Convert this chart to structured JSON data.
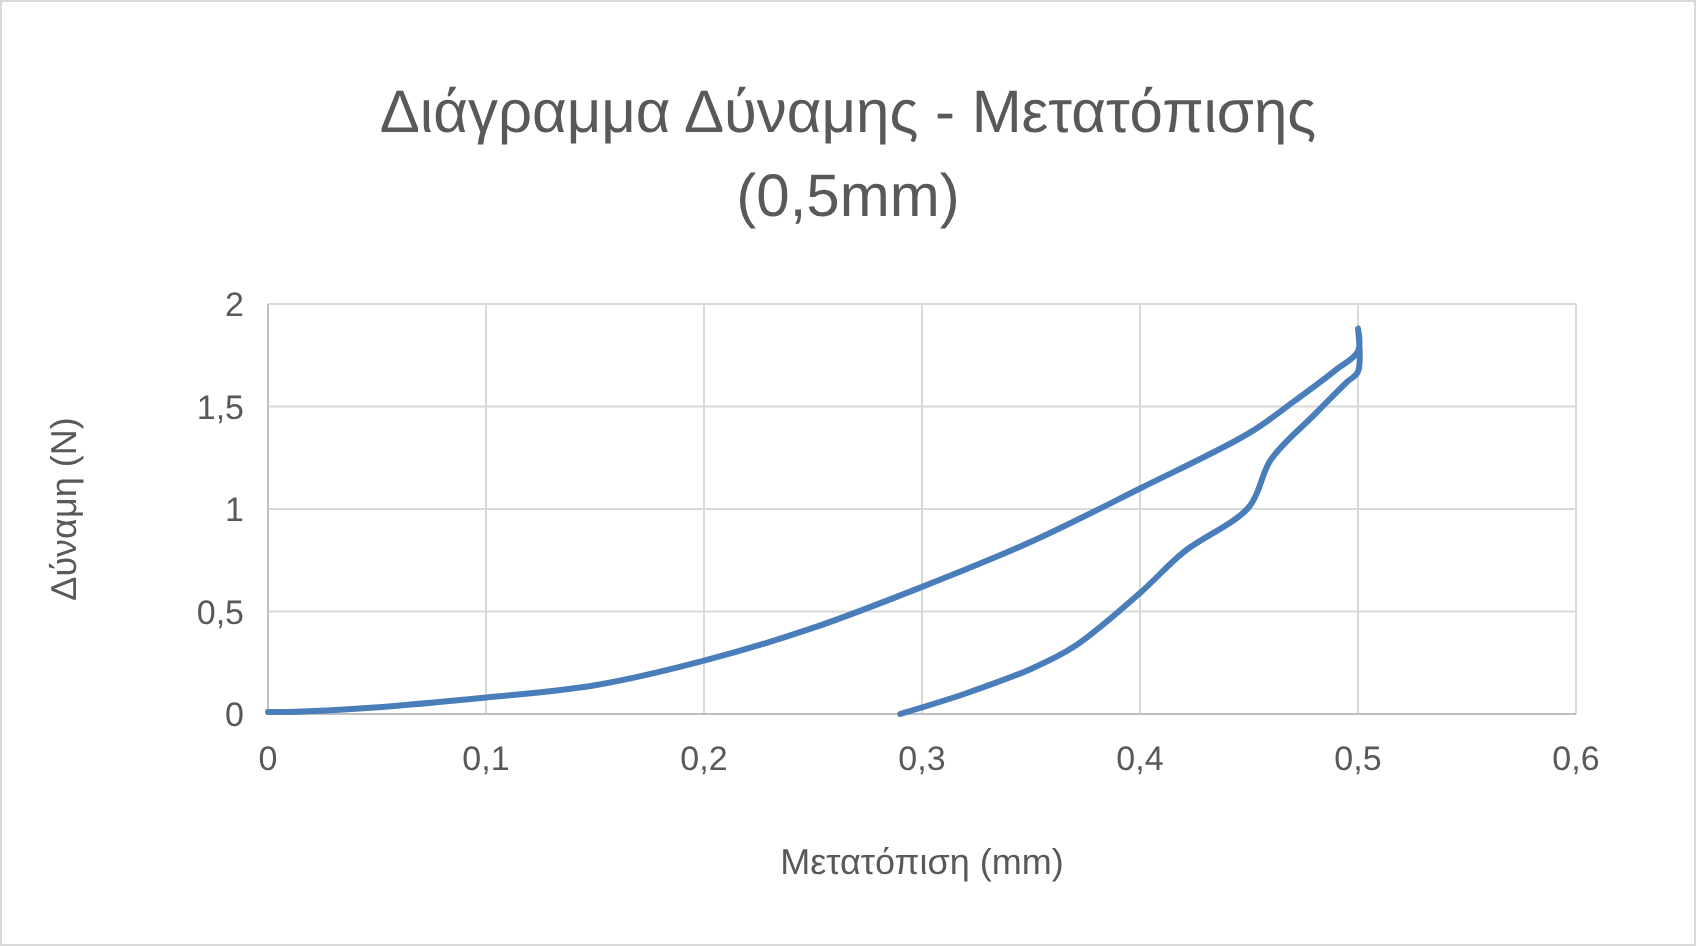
{
  "chart_data": {
    "type": "line",
    "title": "Διάγραμμα Δύναμης - Μετατόπισης (0,5mm)",
    "xlabel": "Μετατόπιση (mm)",
    "ylabel": "Δύναμη (N)",
    "xlim": [
      0,
      0.6
    ],
    "xticks": [
      {
        "value": 0,
        "label": "0"
      },
      {
        "value": 0.1,
        "label": "0,1"
      },
      {
        "value": 0.2,
        "label": "0,2"
      },
      {
        "value": 0.3,
        "label": "0,3"
      },
      {
        "value": 0.4,
        "label": "0,4"
      },
      {
        "value": 0.5,
        "label": "0,5"
      },
      {
        "value": 0.6,
        "label": "0,6"
      }
    ],
    "ylim": [
      0,
      2
    ],
    "yticks": [
      {
        "value": 0,
        "label": "0"
      },
      {
        "value": 0.5,
        "label": "0,5"
      },
      {
        "value": 1,
        "label": "1"
      },
      {
        "value": 1.5,
        "label": "1,5"
      },
      {
        "value": 2,
        "label": "2"
      }
    ],
    "grid": true,
    "marker": "none",
    "line_style": "solid",
    "series": [
      {
        "color": "#4a7ebb",
        "x": [
          0,
          0.01,
          0.047,
          0.1,
          0.15,
          0.2,
          0.25,
          0.3,
          0.35,
          0.4,
          0.45,
          0.47,
          0.49,
          0.5,
          0.5,
          0.5,
          0.495,
          0.48,
          0.46,
          0.45,
          0.42,
          0.4,
          0.37,
          0.35,
          0.32,
          0.29
        ],
        "values": [
          0.01,
          0.01,
          0.03,
          0.08,
          0.14,
          0.26,
          0.42,
          0.62,
          0.84,
          1.1,
          1.37,
          1.52,
          1.68,
          1.77,
          1.88,
          1.67,
          1.62,
          1.46,
          1.24,
          1.01,
          0.79,
          0.59,
          0.33,
          0.22,
          0.1,
          0
        ]
      }
    ]
  }
}
